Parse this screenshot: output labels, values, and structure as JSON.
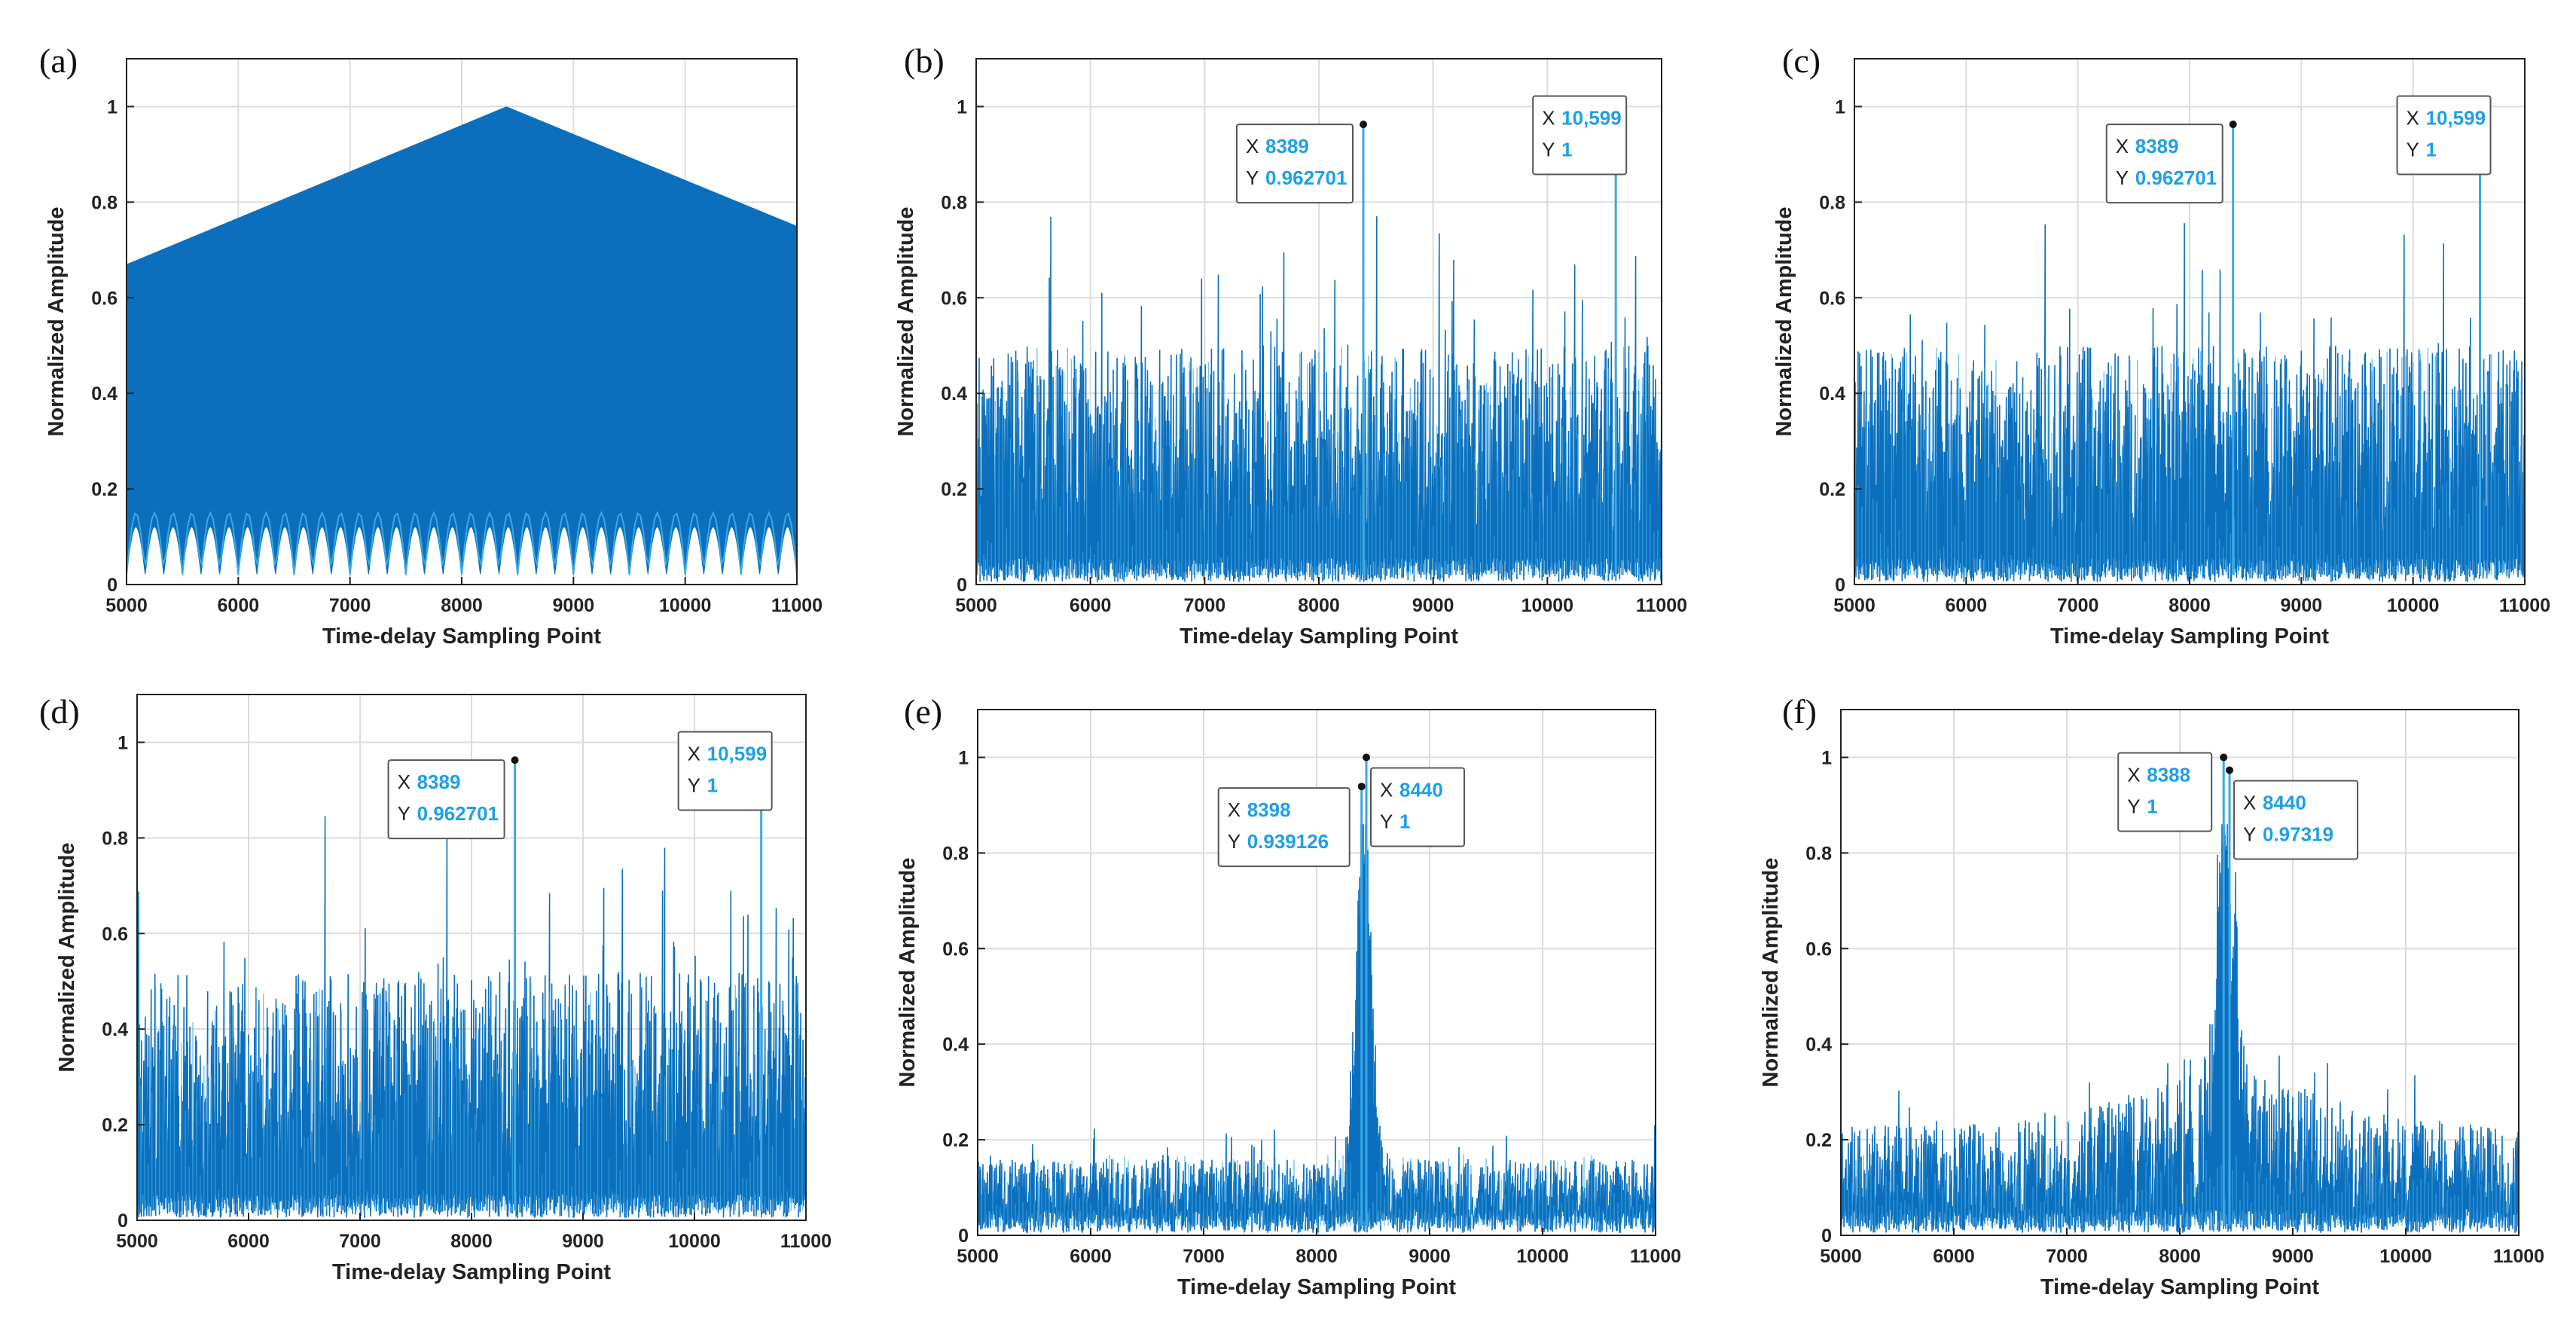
{
  "figure": {
    "colors": {
      "signal": "#0b6fbd",
      "signal_light": "#3aa8e6",
      "grid": "#dcdcdc",
      "axis": "#222222",
      "datatip_value": "#1e9fe8"
    }
  },
  "chart_data": [
    {
      "id": "a",
      "panel_label": "(a)",
      "type": "line",
      "pattern": "sawtooth",
      "xlabel": "Time-delay Sampling Point",
      "ylabel": "Normalized Amplitude",
      "xlim": [
        5000,
        11000
      ],
      "ylim": [
        0,
        1.1
      ],
      "xticks": [
        5000,
        6000,
        7000,
        8000,
        9000,
        10000,
        11000
      ],
      "xtick_labels": [
        "5000",
        "6000",
        "7000",
        "8000",
        "9000",
        "10000",
        "11000"
      ],
      "yticks": [
        0,
        0.2,
        0.4,
        0.6,
        0.8,
        1
      ],
      "ytick_labels": [
        "0",
        "0.2",
        "0.4",
        "0.6",
        "0.8",
        "1"
      ],
      "envelope": {
        "x": [
          5000,
          8400,
          11000
        ],
        "y": [
          0.67,
          1.0,
          0.75
        ]
      },
      "peaks": [],
      "datatips": []
    },
    {
      "id": "b",
      "panel_label": "(b)",
      "type": "line",
      "pattern": "noise",
      "xlabel": "Time-delay Sampling Point",
      "ylabel": "Normalized Amplitude",
      "xlim": [
        5000,
        11000
      ],
      "ylim": [
        0,
        1.1
      ],
      "xticks": [
        5000,
        6000,
        7000,
        8000,
        9000,
        10000,
        11000
      ],
      "xtick_labels": [
        "5000",
        "6000",
        "7000",
        "8000",
        "9000",
        "10000",
        "11000"
      ],
      "yticks": [
        0,
        0.2,
        0.4,
        0.6,
        0.8,
        1
      ],
      "ytick_labels": [
        "0",
        "0.2",
        "0.4",
        "0.6",
        "0.8",
        "1"
      ],
      "noise": {
        "base": 0.4,
        "spike": 0.35,
        "spike_prob": 0.06
      },
      "peaks": [
        {
          "x": 8389,
          "y": 0.962701
        },
        {
          "x": 10599,
          "y": 1
        }
      ],
      "datatips": [
        {
          "x_label": "X",
          "x_text": "8389",
          "y_label": "Y",
          "y_text": "0.962701",
          "side": "left"
        },
        {
          "x_label": "X",
          "x_text": "10,599",
          "y_label": "Y",
          "y_text": "1",
          "side": "left"
        }
      ]
    },
    {
      "id": "c",
      "panel_label": "(c)",
      "type": "line",
      "pattern": "noise",
      "xlabel": "Time-delay Sampling Point",
      "ylabel": "Normalized Amplitude",
      "xlim": [
        5000,
        11000
      ],
      "ylim": [
        0,
        1.1
      ],
      "xticks": [
        5000,
        6000,
        7000,
        8000,
        9000,
        10000,
        11000
      ],
      "xtick_labels": [
        "5000",
        "6000",
        "7000",
        "8000",
        "9000",
        "10000",
        "11000"
      ],
      "yticks": [
        0,
        0.2,
        0.4,
        0.6,
        0.8,
        1
      ],
      "ytick_labels": [
        "0",
        "0.2",
        "0.4",
        "0.6",
        "0.8",
        "1"
      ],
      "noise": {
        "base": 0.4,
        "spike": 0.35,
        "spike_prob": 0.06
      },
      "peaks": [
        {
          "x": 8389,
          "y": 0.962701
        },
        {
          "x": 10599,
          "y": 1
        }
      ],
      "datatips": [
        {
          "x_label": "X",
          "x_text": "8389",
          "y_label": "Y",
          "y_text": "0.962701",
          "side": "left"
        },
        {
          "x_label": "X",
          "x_text": "10,599",
          "y_label": "Y",
          "y_text": "1",
          "side": "left"
        }
      ]
    },
    {
      "id": "d",
      "panel_label": "(d)",
      "type": "line",
      "pattern": "noise",
      "xlabel": "Time-delay Sampling Point",
      "ylabel": "Normalized Amplitude",
      "xlim": [
        5000,
        11000
      ],
      "ylim": [
        0,
        1.1
      ],
      "xticks": [
        5000,
        6000,
        7000,
        8000,
        9000,
        10000,
        11000
      ],
      "xtick_labels": [
        "5000",
        "6000",
        "7000",
        "8000",
        "9000",
        "10000",
        "11000"
      ],
      "yticks": [
        0,
        0.2,
        0.4,
        0.6,
        0.8,
        1
      ],
      "ytick_labels": [
        "0",
        "0.2",
        "0.4",
        "0.6",
        "0.8",
        "1"
      ],
      "noise": {
        "base": 0.42,
        "spike": 0.35,
        "spike_prob": 0.06
      },
      "peaks": [
        {
          "x": 8389,
          "y": 0.962701
        },
        {
          "x": 10599,
          "y": 1
        }
      ],
      "datatips": [
        {
          "x_label": "X",
          "x_text": "8389",
          "y_label": "Y",
          "y_text": "0.962701",
          "side": "left"
        },
        {
          "x_label": "X",
          "x_text": "10,599",
          "y_label": "Y",
          "y_text": "1",
          "side": "left"
        }
      ]
    },
    {
      "id": "e",
      "panel_label": "(e)",
      "type": "line",
      "pattern": "peak",
      "xlabel": "Time-delay Sampling Point",
      "ylabel": "Normalized Amplitude",
      "xlim": [
        5000,
        11000
      ],
      "ylim": [
        0,
        1.1
      ],
      "xticks": [
        5000,
        6000,
        7000,
        8000,
        9000,
        10000,
        11000
      ],
      "xtick_labels": [
        "5000",
        "6000",
        "7000",
        "8000",
        "9000",
        "10000",
        "11000"
      ],
      "yticks": [
        0,
        0.2,
        0.4,
        0.6,
        0.8,
        1
      ],
      "ytick_labels": [
        "0",
        "0.2",
        "0.4",
        "0.6",
        "0.8",
        "1"
      ],
      "noise": {
        "base": 0.13,
        "spike": 0.08,
        "spike_prob": 0.03,
        "center": 8420,
        "width": 100,
        "bump": 0.0
      },
      "peaks": [
        {
          "x": 8398,
          "y": 0.939126
        },
        {
          "x": 8440,
          "y": 1
        }
      ],
      "datatips": [
        {
          "x_label": "X",
          "x_text": "8398",
          "y_label": "Y",
          "y_text": "0.939126",
          "side": "left"
        },
        {
          "x_label": "X",
          "x_text": "8440",
          "y_label": "Y",
          "y_text": "1",
          "side": "right"
        }
      ]
    },
    {
      "id": "f",
      "panel_label": "(f)",
      "type": "line",
      "pattern": "peak",
      "xlabel": "Time-delay Sampling Point",
      "ylabel": "Normalized Amplitude",
      "xlim": [
        5000,
        11000
      ],
      "ylim": [
        0,
        1.1
      ],
      "xticks": [
        5000,
        6000,
        7000,
        8000,
        9000,
        10000,
        11000
      ],
      "xtick_labels": [
        "5000",
        "6000",
        "7000",
        "8000",
        "9000",
        "10000",
        "11000"
      ],
      "yticks": [
        0,
        0.2,
        0.4,
        0.6,
        0.8,
        1
      ],
      "ytick_labels": [
        "0",
        "0.2",
        "0.4",
        "0.6",
        "0.8",
        "1"
      ],
      "noise": {
        "base": 0.2,
        "spike": 0.1,
        "spike_prob": 0.04,
        "center": 8410,
        "width": 110,
        "bump": 0.18
      },
      "peaks": [
        {
          "x": 8388,
          "y": 1
        },
        {
          "x": 8440,
          "y": 0.97319
        }
      ],
      "datatips": [
        {
          "x_label": "X",
          "x_text": "8388",
          "y_label": "Y",
          "y_text": "1",
          "side": "left"
        },
        {
          "x_label": "X",
          "x_text": "8440",
          "y_label": "Y",
          "y_text": "0.97319",
          "side": "right"
        }
      ]
    }
  ]
}
